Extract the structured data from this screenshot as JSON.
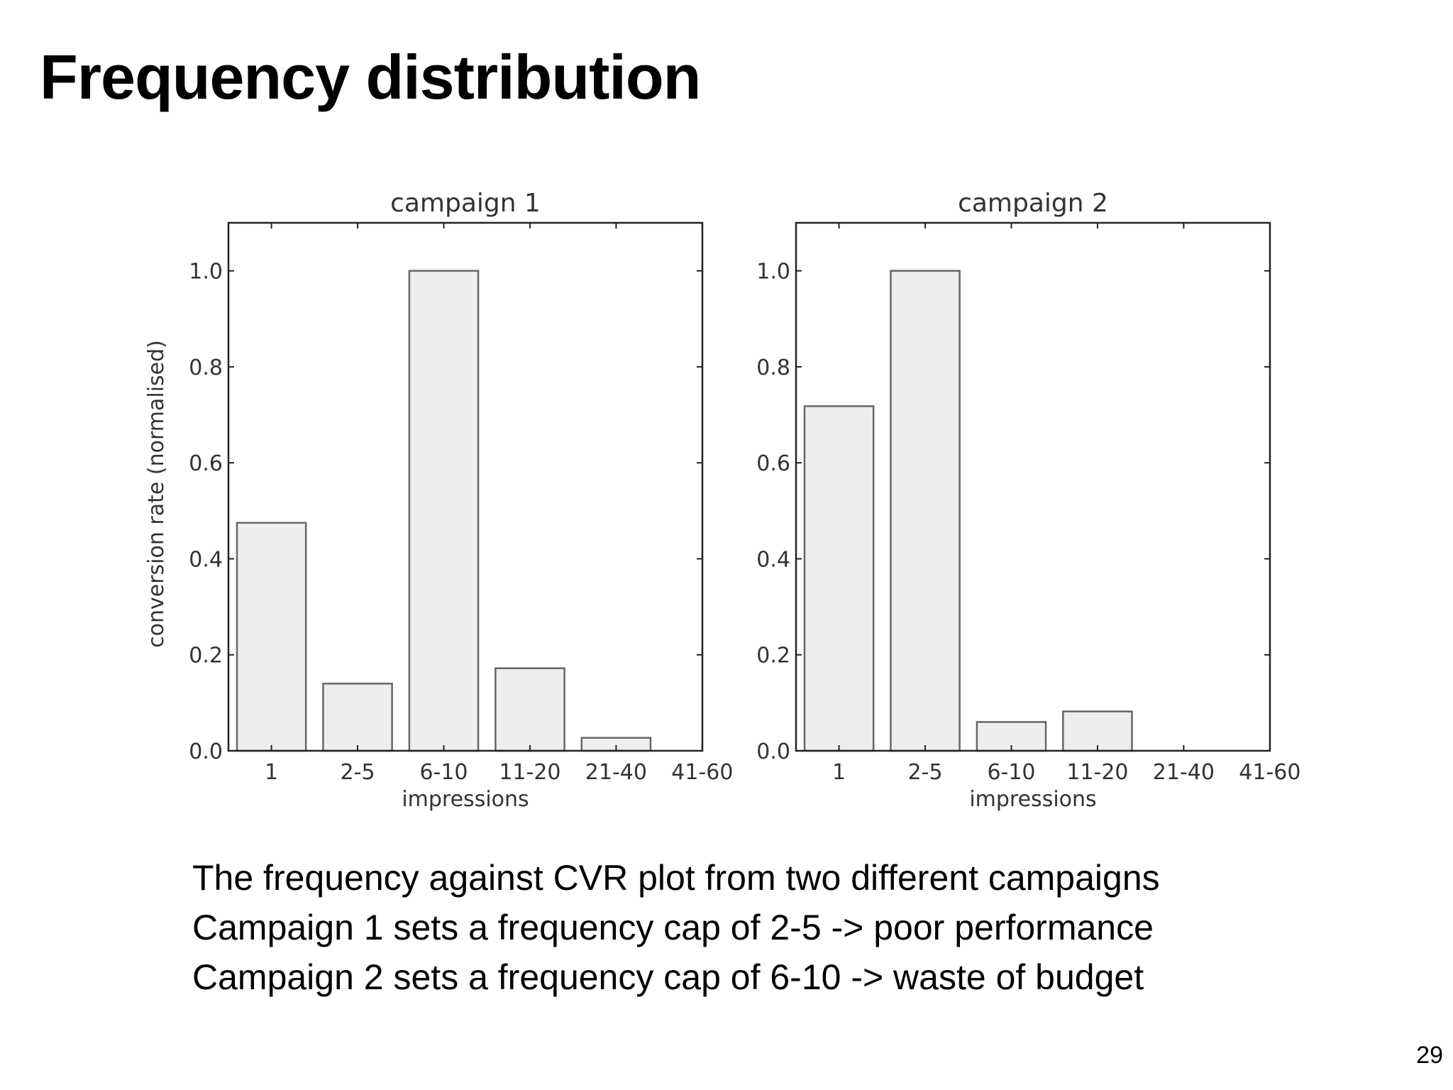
{
  "slide": {
    "title": "Frequency distribution",
    "page_number": "29"
  },
  "caption": {
    "lines": [
      "The frequency against CVR plot from two different campaigns",
      "Campaign 1 sets a frequency cap of 2-5 -> poor performance",
      "Campaign 2 sets a frequency cap of 6-10 -> waste of budget"
    ]
  },
  "colors": {
    "bar_fill": "#eeeeee",
    "bar_stroke": "#666666",
    "axis": "#222222",
    "text": "#333333"
  },
  "chart_data": [
    {
      "type": "bar",
      "title": "campaign 1",
      "categories": [
        "1",
        "2-5",
        "6-10",
        "11-20",
        "21-40",
        "41-60"
      ],
      "values": [
        0.475,
        0.14,
        1.0,
        0.172,
        0.027,
        0.0
      ],
      "xlabel": "impressions",
      "ylabel": "conversion rate (normalised)",
      "ylim": [
        0,
        1.1
      ],
      "yticks": [
        "0.0",
        "0.2",
        "0.4",
        "0.6",
        "0.8",
        "1.0"
      ],
      "grid": false
    },
    {
      "type": "bar",
      "title": "campaign 2",
      "categories": [
        "1",
        "2-5",
        "6-10",
        "11-20",
        "21-40",
        "41-60"
      ],
      "values": [
        0.718,
        1.0,
        0.06,
        0.082,
        0.0,
        0.0
      ],
      "xlabel": "impressions",
      "ylabel": "",
      "ylim": [
        0,
        1.1
      ],
      "yticks": [
        "0.0",
        "0.2",
        "0.4",
        "0.6",
        "0.8",
        "1.0"
      ],
      "grid": false
    }
  ]
}
